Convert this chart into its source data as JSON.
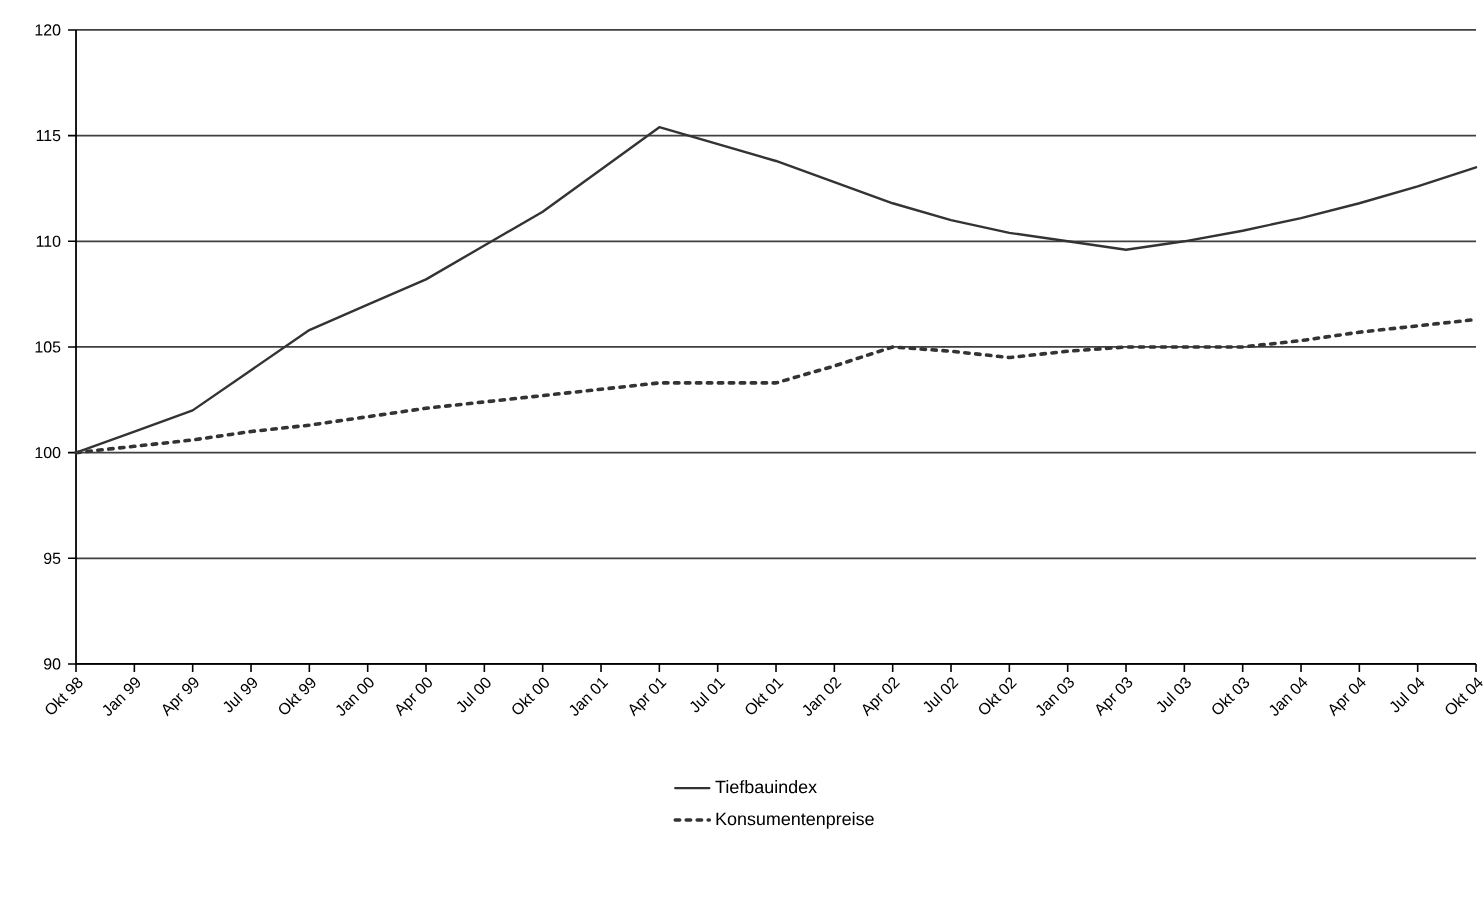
{
  "chart_data": {
    "type": "line",
    "categories": [
      "Okt 98",
      "Jan 99",
      "Apr 99",
      "Jul 99",
      "Okt 99",
      "Jan 00",
      "Apr 00",
      "Jul 00",
      "Okt 00",
      "Jan 01",
      "Apr 01",
      "Jul 01",
      "Okt 01",
      "Jan 02",
      "Apr 02",
      "Jul 02",
      "Okt 02",
      "Jan 03",
      "Apr 03",
      "Jul 03",
      "Okt 03",
      "Jan 04",
      "Apr 04",
      "Jul 04",
      "Okt 04"
    ],
    "series": [
      {
        "name": "Tiefbauindex",
        "color": "#333333",
        "line_style": "solid",
        "values": [
          100,
          101.0,
          102.0,
          103.9,
          105.8,
          107.0,
          108.2,
          109.8,
          111.4,
          113.4,
          115.4,
          114.6,
          113.8,
          112.8,
          111.8,
          111.0,
          110.4,
          110.0,
          109.6,
          110.0,
          110.5,
          111.1,
          111.8,
          112.6,
          113.5
        ]
      },
      {
        "name": "Konsumentenpreise",
        "color": "#333333",
        "line_style": "dotted",
        "values": [
          100,
          100.3,
          100.6,
          101.0,
          101.3,
          101.7,
          102.1,
          102.4,
          102.7,
          103.0,
          103.3,
          103.3,
          103.3,
          104.1,
          105.0,
          104.8,
          104.5,
          104.8,
          105.0,
          105.0,
          105.0,
          105.3,
          105.7,
          106.0,
          106.3
        ]
      }
    ],
    "ylim": [
      90,
      120
    ],
    "yticks": [
      90,
      95,
      100,
      105,
      110,
      115,
      120
    ],
    "grid": "y",
    "legend": "bottom",
    "marker": "none"
  }
}
